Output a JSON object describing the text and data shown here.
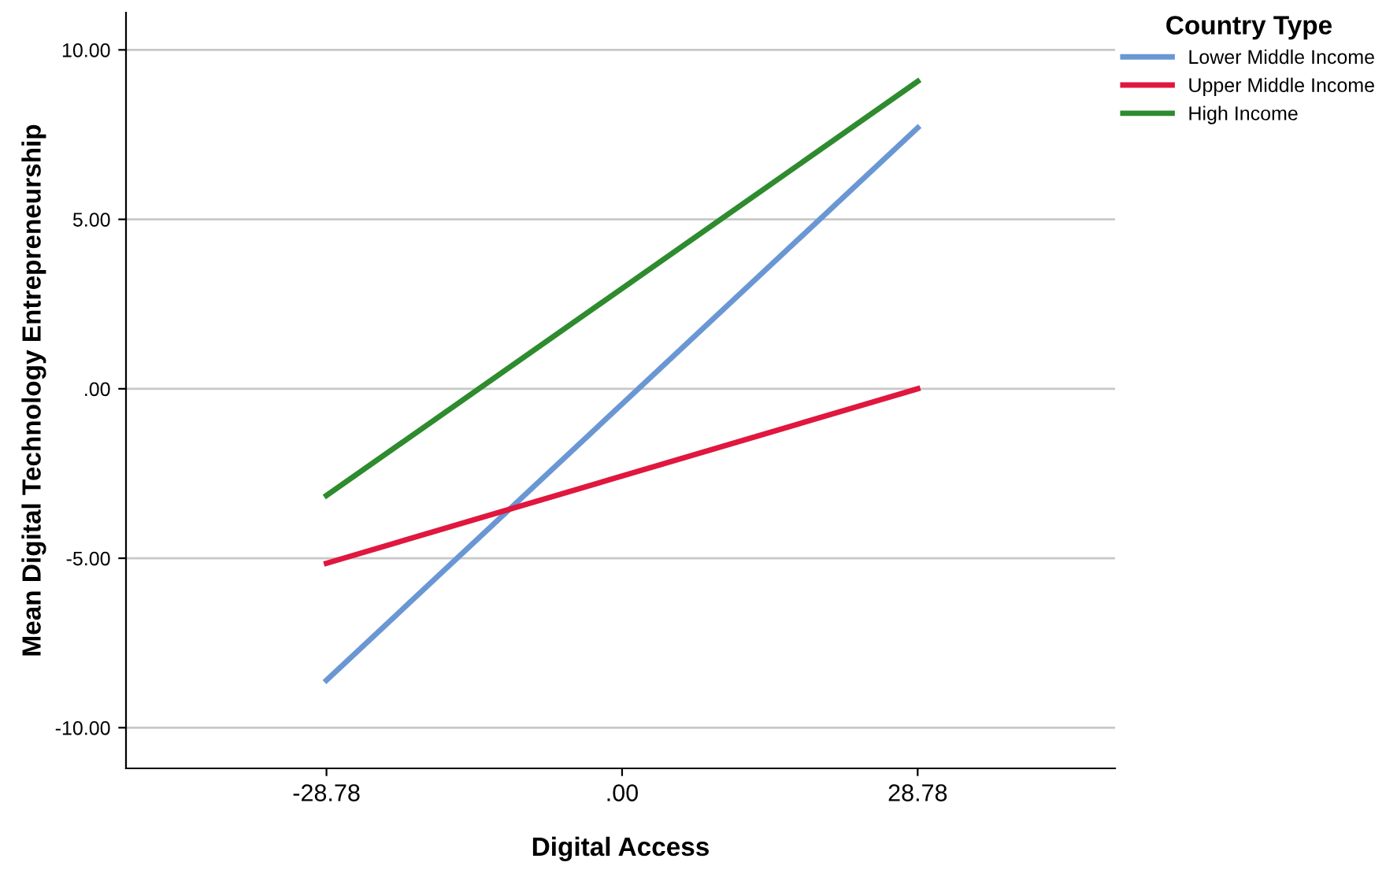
{
  "chart_data": {
    "type": "line",
    "xlabel": "Digital Access",
    "ylabel": "Mean Digital Technology Entrepreneurship",
    "legend_title": "Country Type",
    "x": [
      -28.78,
      28.78
    ],
    "series": [
      {
        "name": "Lower Middle Income",
        "color": "#6a97d4",
        "values": [
          -8.6,
          7.7
        ]
      },
      {
        "name": "Upper Middle Income",
        "color": "#e0173e",
        "values": [
          -5.15,
          0.0
        ]
      },
      {
        "name": "High Income",
        "color": "#2e8b2e",
        "values": [
          -3.15,
          9.07
        ]
      }
    ],
    "xlim": [
      -48.3,
      48.0
    ],
    "xticks": [
      {
        "value": -28.78,
        "label": "-28.78"
      },
      {
        "value": 0,
        "label": ".00"
      },
      {
        "value": 28.78,
        "label": "28.78"
      }
    ],
    "ylim": [
      -11.2,
      11.1
    ],
    "yticks": [
      {
        "value": -10,
        "label": "-10.00"
      },
      {
        "value": -5,
        "label": "-5.00"
      },
      {
        "value": 0,
        "label": ".00"
      },
      {
        "value": 5,
        "label": "5.00"
      },
      {
        "value": 10,
        "label": "10.00"
      }
    ],
    "grid": "y",
    "legend": "top right",
    "marker": "none",
    "line_style": "solid"
  }
}
